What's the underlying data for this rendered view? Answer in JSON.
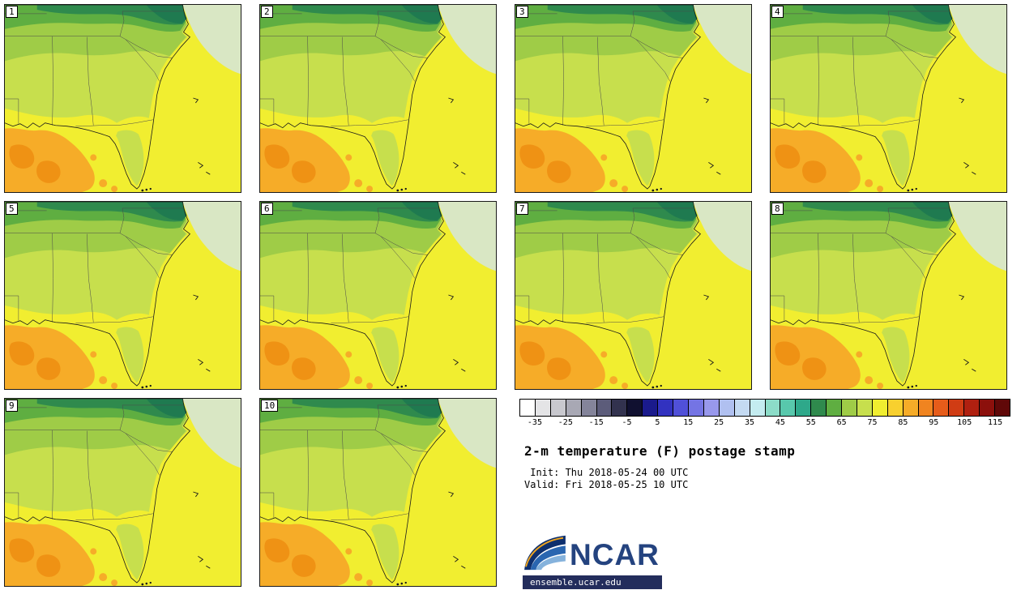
{
  "panels": [
    {
      "label": "1"
    },
    {
      "label": "2"
    },
    {
      "label": "3"
    },
    {
      "label": "4"
    },
    {
      "label": "5"
    },
    {
      "label": "6"
    },
    {
      "label": "7"
    },
    {
      "label": "8"
    },
    {
      "label": "9"
    },
    {
      "label": "10"
    }
  ],
  "colorbar": {
    "min": -40,
    "max": 120,
    "ticks": [
      -35,
      -25,
      -15,
      -5,
      5,
      15,
      25,
      35,
      45,
      55,
      65,
      75,
      85,
      95,
      105,
      115
    ],
    "colors": [
      "#ffffff",
      "#e4e4e6",
      "#c8c8ce",
      "#a8a8b4",
      "#84849a",
      "#5c5c7a",
      "#32324e",
      "#101030",
      "#1a1a8c",
      "#3232c0",
      "#5050d8",
      "#7474e4",
      "#9898ec",
      "#b0c0f0",
      "#c4daf2",
      "#c4ecf0",
      "#8cdcc8",
      "#58c8ac",
      "#2ea88a",
      "#2f8a4d",
      "#5fae41",
      "#9fcc47",
      "#c7df4d",
      "#f0ee30",
      "#f8d02e",
      "#f6ac28",
      "#f08420",
      "#e65c1a",
      "#d03c14",
      "#b02010",
      "#8c100c",
      "#600808"
    ]
  },
  "info": {
    "title": "2-m temperature (F) postage stamp",
    "init_line": " Init: Thu 2018-05-24 00 UTC",
    "valid_line": "Valid: Fri 2018-05-25 10 UTC"
  },
  "branding": {
    "logo_text": "NCAR",
    "url": "ensemble.ucar.edu"
  },
  "map_palette": {
    "sea_and_warm_land": "#f1ee30",
    "coastal_plain_green": "#c7df4d",
    "inland_green": "#9fcc47",
    "upland_green": "#5fae41",
    "mountain_green": "#2f8a4d",
    "mountain_dark_teal": "#1f7a50",
    "offshore_cool_sage": "#d9e7c4",
    "gulf_orange": "#f6ac28",
    "gulf_deep_orange": "#ef9214"
  }
}
